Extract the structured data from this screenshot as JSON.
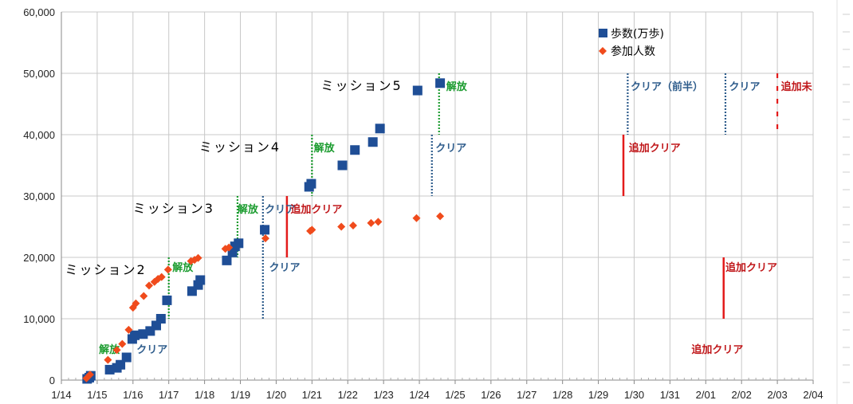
{
  "chart_data": {
    "type": "scatter",
    "xlim": [
      "1/14",
      "2/04"
    ],
    "ylim": [
      0,
      60000
    ],
    "ystep": 10000,
    "y_tick_labels": [
      "0",
      "10,000",
      "20,000",
      "30,000",
      "40,000",
      "50,000",
      "60,000"
    ],
    "x_tick_labels": [
      "1/14",
      "1/15",
      "1/16",
      "1/17",
      "1/18",
      "1/19",
      "1/20",
      "1/21",
      "1/22",
      "1/23",
      "1/24",
      "1/25",
      "1/26",
      "1/27",
      "1/28",
      "1/29",
      "1/30",
      "1/31",
      "2/01",
      "2/02",
      "2/03",
      "2/04"
    ],
    "grid": true,
    "legend_position": "top-right",
    "series": [
      {
        "name": "歩数(万歩)",
        "marker": "square",
        "color": "#1f4e96",
        "points": [
          [
            0.72,
            200
          ],
          [
            0.78,
            400
          ],
          [
            0.82,
            700
          ],
          [
            1.35,
            1700
          ],
          [
            1.55,
            2000
          ],
          [
            1.65,
            2500
          ],
          [
            1.82,
            3700
          ],
          [
            1.98,
            6700
          ],
          [
            2.05,
            7300
          ],
          [
            2.28,
            7500
          ],
          [
            2.48,
            8000
          ],
          [
            2.65,
            8900
          ],
          [
            2.78,
            10000
          ],
          [
            2.95,
            13000
          ],
          [
            3.65,
            14500
          ],
          [
            3.82,
            15500
          ],
          [
            3.88,
            16300
          ],
          [
            4.62,
            19500
          ],
          [
            4.78,
            20800
          ],
          [
            4.85,
            21800
          ],
          [
            4.95,
            22300
          ],
          [
            5.68,
            24500
          ],
          [
            6.92,
            31500
          ],
          [
            6.98,
            32000
          ],
          [
            7.85,
            35000
          ],
          [
            8.2,
            37500
          ],
          [
            8.7,
            38800
          ],
          [
            8.9,
            41000
          ],
          [
            9.95,
            47200
          ],
          [
            10.58,
            48400
          ]
        ]
      },
      {
        "name": "参加人数",
        "marker": "diamond",
        "color": "#f04b1c",
        "points": [
          [
            0.7,
            300
          ],
          [
            0.8,
            900
          ],
          [
            1.3,
            3300
          ],
          [
            1.55,
            4900
          ],
          [
            1.7,
            5900
          ],
          [
            1.88,
            8200
          ],
          [
            2.0,
            11800
          ],
          [
            2.08,
            12500
          ],
          [
            2.3,
            13700
          ],
          [
            2.45,
            15400
          ],
          [
            2.6,
            16000
          ],
          [
            2.7,
            16500
          ],
          [
            2.8,
            16800
          ],
          [
            2.98,
            18000
          ],
          [
            3.62,
            19400
          ],
          [
            3.72,
            19600
          ],
          [
            3.82,
            19900
          ],
          [
            4.58,
            21400
          ],
          [
            4.68,
            21600
          ],
          [
            5.7,
            23100
          ],
          [
            6.95,
            24300
          ],
          [
            7.0,
            24500
          ],
          [
            7.82,
            25000
          ],
          [
            8.15,
            25200
          ],
          [
            8.65,
            25600
          ],
          [
            8.85,
            25800
          ],
          [
            9.92,
            26400
          ],
          [
            10.58,
            26700
          ]
        ]
      }
    ],
    "annotations": [
      {
        "text": "ミッション2",
        "kind": "mission",
        "at": [
          0.1,
          17300
        ]
      },
      {
        "text": "ミッション3",
        "kind": "mission",
        "at": [
          2.0,
          27300
        ]
      },
      {
        "text": "ミッション4",
        "kind": "mission",
        "at": [
          3.85,
          37300
        ]
      },
      {
        "text": "ミッション5",
        "kind": "mission",
        "at": [
          7.25,
          47300
        ]
      },
      {
        "text": "解放",
        "kind": "release",
        "at": [
          1.05,
          4400
        ]
      },
      {
        "text": "クリア",
        "kind": "clear",
        "at": [
          2.1,
          4400
        ]
      },
      {
        "text": "解放",
        "kind": "release",
        "at": [
          3.1,
          17800
        ]
      },
      {
        "text": "クリア",
        "kind": "clear",
        "at": [
          5.8,
          17800
        ]
      },
      {
        "text": "解放",
        "kind": "release",
        "at": [
          4.92,
          27300
        ]
      },
      {
        "text": "クリア",
        "kind": "clear",
        "at": [
          5.68,
          27300
        ]
      },
      {
        "text": "追加クリア",
        "kind": "extra",
        "at": [
          6.4,
          27300
        ]
      },
      {
        "text": "解放",
        "kind": "release",
        "at": [
          7.05,
          37300
        ]
      },
      {
        "text": "クリア",
        "kind": "clear",
        "at": [
          10.45,
          37300
        ]
      },
      {
        "text": "解放",
        "kind": "release",
        "at": [
          10.75,
          47300
        ]
      },
      {
        "text": "クリア（前半）",
        "kind": "clear",
        "at": [
          15.9,
          47300
        ]
      },
      {
        "text": "クリア",
        "kind": "clear",
        "at": [
          18.65,
          47300
        ]
      },
      {
        "text": "追加未",
        "kind": "extra",
        "at": [
          20.1,
          47300
        ]
      },
      {
        "text": "追加クリア",
        "kind": "extra",
        "at": [
          15.85,
          37300
        ]
      },
      {
        "text": "追加クリア",
        "kind": "extra",
        "at": [
          18.55,
          17800
        ]
      },
      {
        "text": "追加クリア",
        "kind": "extra",
        "at": [
          17.6,
          4400
        ]
      }
    ],
    "vlines": [
      {
        "x": 3.0,
        "y0": 10000,
        "y1": 20000,
        "style": "dotted",
        "color": "#1a9b2e"
      },
      {
        "x": 4.92,
        "y0": 20000,
        "y1": 30000,
        "style": "dotted",
        "color": "#1a9b2e"
      },
      {
        "x": 7.0,
        "y0": 30000,
        "y1": 40000,
        "style": "dotted",
        "color": "#1a9b2e"
      },
      {
        "x": 10.55,
        "y0": 40000,
        "y1": 50000,
        "style": "dotted",
        "color": "#1a9b2e"
      },
      {
        "x": 5.63,
        "y0": 10000,
        "y1": 30000,
        "style": "dotted",
        "color": "#2f5d8c"
      },
      {
        "x": 10.35,
        "y0": 30000,
        "y1": 40000,
        "style": "dotted",
        "color": "#2f5d8c"
      },
      {
        "x": 15.82,
        "y0": 40000,
        "y1": 50000,
        "style": "dotted",
        "color": "#2f5d8c"
      },
      {
        "x": 18.55,
        "y0": 40000,
        "y1": 50000,
        "style": "dotted",
        "color": "#2f5d8c"
      },
      {
        "x": 6.3,
        "y0": 20000,
        "y1": 30000,
        "style": "solid",
        "color": "#e31b1b"
      },
      {
        "x": 15.7,
        "y0": 30000,
        "y1": 40000,
        "style": "solid",
        "color": "#e31b1b"
      },
      {
        "x": 18.5,
        "y0": 10000,
        "y1": 20000,
        "style": "solid",
        "color": "#e31b1b"
      },
      {
        "x": 20.0,
        "y0": 40000,
        "y1": 50000,
        "style": "dashed",
        "color": "#e31b1b"
      }
    ],
    "colors": {
      "release": "#1a9b2e",
      "clear": "#2f5d8c",
      "extra": "#c0181b",
      "grid": "#c8c8c8",
      "axis": "#888888"
    }
  }
}
